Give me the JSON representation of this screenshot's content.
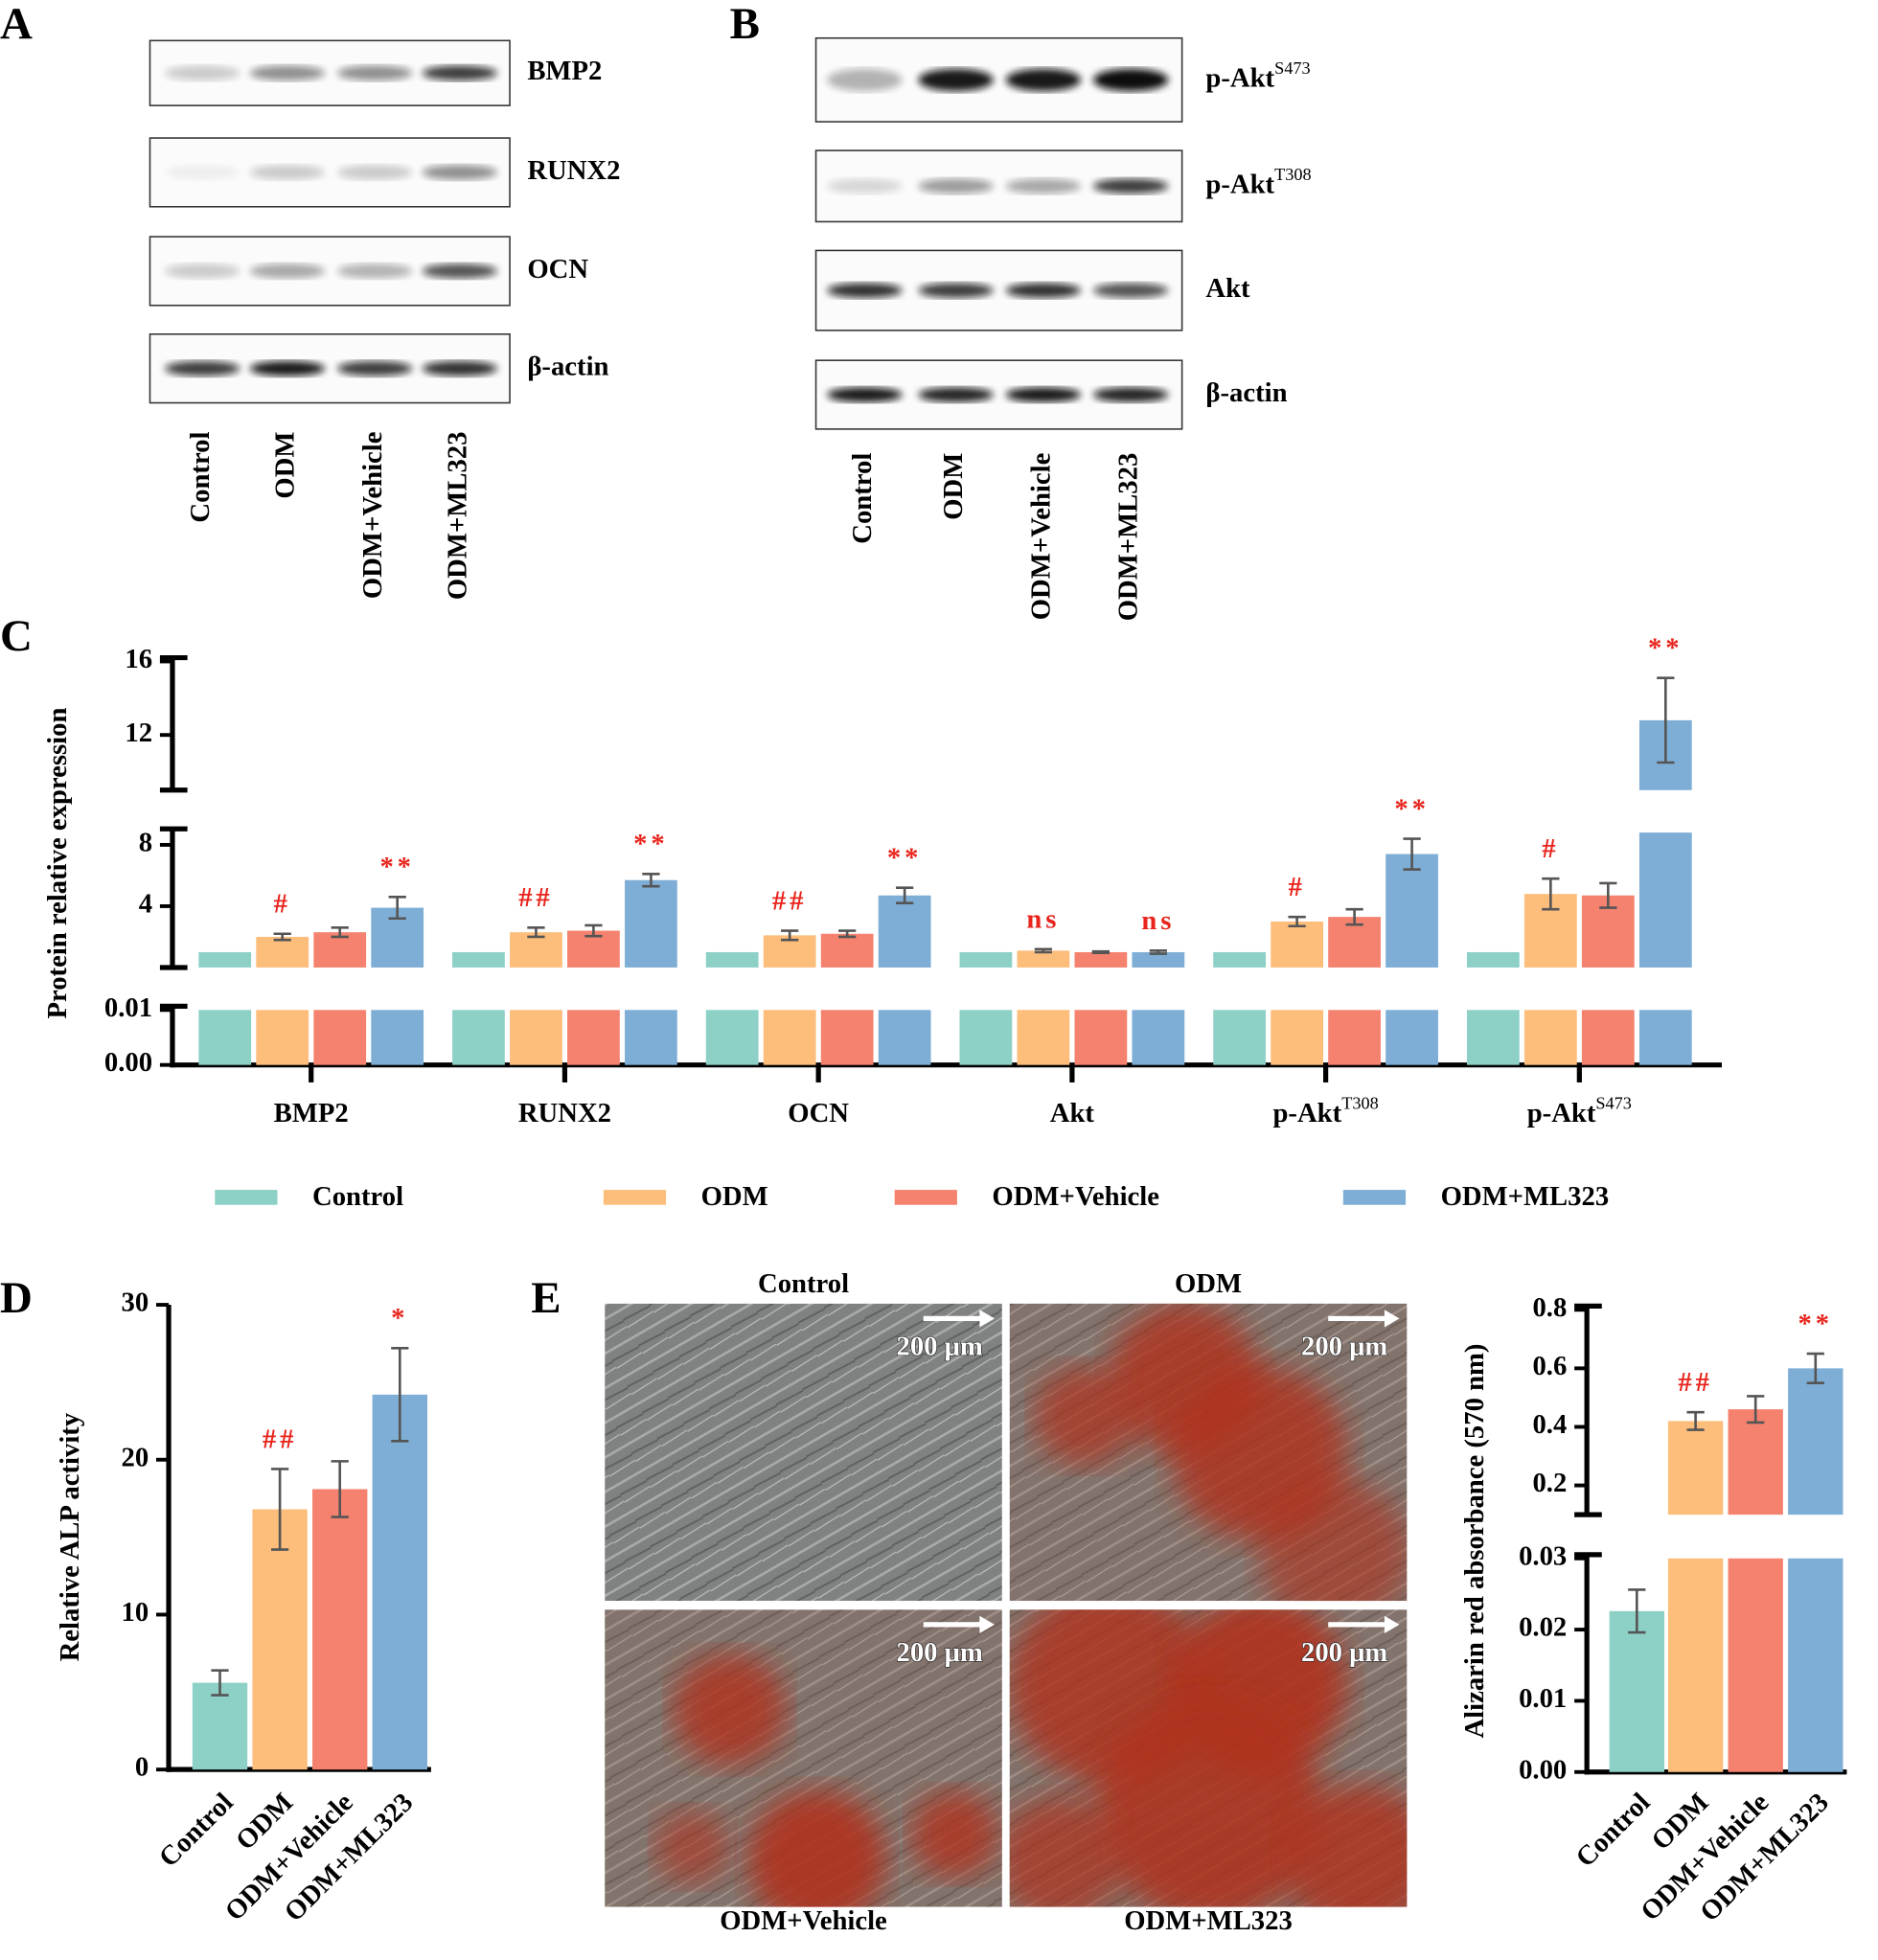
{
  "panel_labels": [
    "A",
    "B",
    "C",
    "D",
    "E"
  ],
  "blots": [
    {
      "proteins": [
        {
          "name": "BMP2"
        },
        {
          "name": "RUNX2"
        },
        {
          "name": "OCN"
        },
        {
          "name": "β-actin"
        }
      ],
      "lanes": [
        "Control",
        "ODM",
        "ODM+Vehicle",
        "ODM+ML323"
      ]
    },
    {
      "proteins": [
        {
          "name": "p-Akt",
          "sup": "S473"
        },
        {
          "name": "p-Akt",
          "sup": "T308"
        },
        {
          "name": "Akt"
        },
        {
          "name": "β-actin"
        }
      ],
      "lanes": [
        "Control",
        "ODM",
        "ODM+Vehicle",
        "ODM+ML323"
      ]
    }
  ],
  "micrographs": [
    {
      "label": "Control",
      "scale": "200 μm"
    },
    {
      "label": "ODM",
      "scale": "200 μm"
    },
    {
      "label": "ODM+Vehicle",
      "scale": "200 μm"
    },
    {
      "label": "ODM+ML323",
      "scale": "200 μm"
    }
  ],
  "chart_data": [
    {
      "type": "grouped-broken-bar",
      "ylabel": "Protein relative expression",
      "categories": [
        "BMP2",
        "RUNX2",
        "OCN",
        "Akt",
        "p-Akt",
        "p-Akt"
      ],
      "category_superscripts": [
        null,
        null,
        null,
        null,
        "T308",
        "S473"
      ],
      "series": [
        {
          "name": "Control",
          "color": "#8dd0c6",
          "values": [
            1,
            1,
            1,
            1,
            1,
            1
          ]
        },
        {
          "name": "ODM",
          "color": "#fdbe7c",
          "values": [
            2.0,
            2.3,
            2.1,
            1.1,
            3.0,
            4.8
          ],
          "errors": [
            0.2,
            0.3,
            0.3,
            0.1,
            0.3,
            1.0
          ],
          "annotations": [
            "#",
            "##",
            "##",
            "ns",
            "#",
            "#"
          ]
        },
        {
          "name": "ODM+Vehicle",
          "color": "#f5826f",
          "values": [
            2.3,
            2.4,
            2.2,
            1.0,
            3.3,
            4.7
          ],
          "errors": [
            0.3,
            0.35,
            0.2,
            0.05,
            0.5,
            0.8
          ]
        },
        {
          "name": "ODM+ML323",
          "color": "#7eaed5",
          "values": [
            3.9,
            5.7,
            4.7,
            1.0,
            7.4,
            12.8
          ],
          "errors": [
            0.7,
            0.4,
            0.5,
            0.1,
            1.0,
            2.3
          ],
          "annotations": [
            "**",
            "**",
            "**",
            "ns",
            "**",
            "**"
          ]
        }
      ],
      "y_segments": [
        {
          "ylim": [
            0,
            0.01
          ],
          "yticks": [
            {
              "value": 0,
              "label": "0.00"
            },
            0.01
          ]
        },
        {
          "ylim": [
            0,
            8.8
          ],
          "yticks": [
            4,
            8
          ]
        },
        {
          "ylim": [
            9,
            16
          ],
          "yticks": [
            12,
            16
          ]
        }
      ],
      "legend": "bottom"
    },
    {
      "type": "bar",
      "ylabel": "Relative ALP activity",
      "categories": [
        "Control",
        "ODM",
        "ODM+Vehicle",
        "ODM+ML323"
      ],
      "colors": [
        "#8dd0c6",
        "#fdbe7c",
        "#f5826f",
        "#7eaed5"
      ],
      "values": [
        5.6,
        16.8,
        18.1,
        24.2
      ],
      "errors": [
        0.8,
        2.6,
        1.8,
        3.0
      ],
      "annotations": [
        null,
        "##",
        null,
        "*"
      ],
      "ylim": [
        0,
        30
      ],
      "yticks": [
        0,
        10,
        20,
        30
      ]
    },
    {
      "type": "broken-bar",
      "ylabel": "Alizarin red absorbance (570 nm)",
      "categories": [
        "Control",
        "ODM",
        "ODM+Vehicle",
        "ODM+ML323"
      ],
      "colors": [
        "#8dd0c6",
        "#fdbe7c",
        "#f5826f",
        "#7eaed5"
      ],
      "values": [
        0.0226,
        0.42,
        0.46,
        0.6
      ],
      "errors": [
        0.003,
        0.03,
        0.045,
        0.05
      ],
      "annotations": [
        null,
        "##",
        null,
        "**"
      ],
      "y_segments": [
        {
          "ylim": [
            0,
            0.03
          ],
          "yticks": [
            {
              "value": 0,
              "label": "0.00"
            },
            0.01,
            0.02,
            0.03
          ]
        },
        {
          "ylim": [
            0.1,
            0.8
          ],
          "yticks": [
            0.2,
            0.4,
            0.6,
            0.8
          ]
        }
      ]
    }
  ]
}
